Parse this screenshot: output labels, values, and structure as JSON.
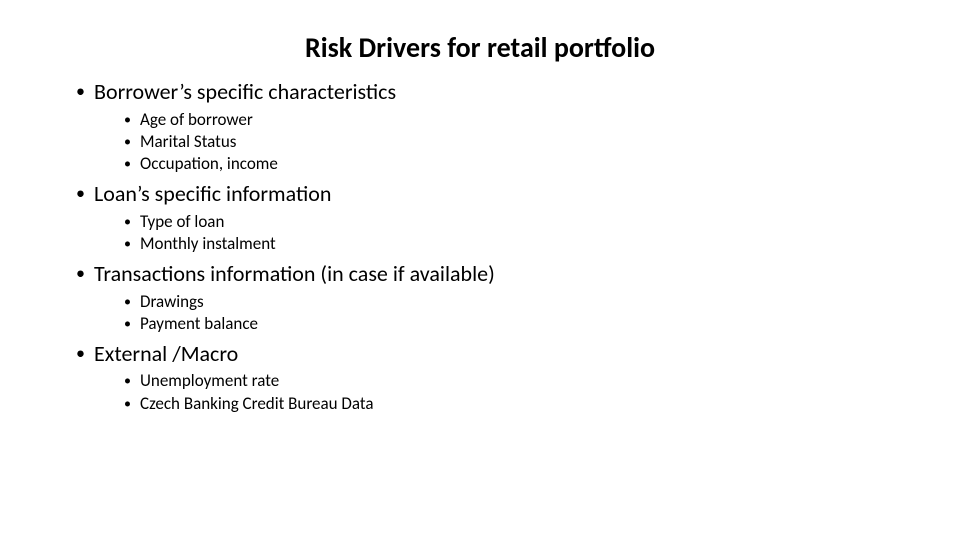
{
  "title": "Risk Drivers for retail portfolio",
  "title_fontsize": 28,
  "title_fontweight": 700,
  "lvl1_fontsize": 22,
  "lvl2_fontsize": 17,
  "text_color": "#000000",
  "background_color": "#ffffff",
  "bullets": {
    "b0": {
      "label": "Borrower’s specific characteristics",
      "sub": {
        "s0": "Age of borrower",
        "s1": "Marital Status",
        "s2": "Occupation, income"
      }
    },
    "b1": {
      "label": "Loan’s specific information",
      "sub": {
        "s0": "Type of loan",
        "s1": "Monthly instalment"
      }
    },
    "b2": {
      "label": "Transactions information (in case if available)",
      "sub": {
        "s0": "Drawings",
        "s1": "Payment balance"
      }
    },
    "b3": {
      "label": "External /Macro",
      "sub": {
        "s0": "Unemployment rate",
        "s1": "Czech Banking Credit Bureau Data"
      }
    }
  }
}
